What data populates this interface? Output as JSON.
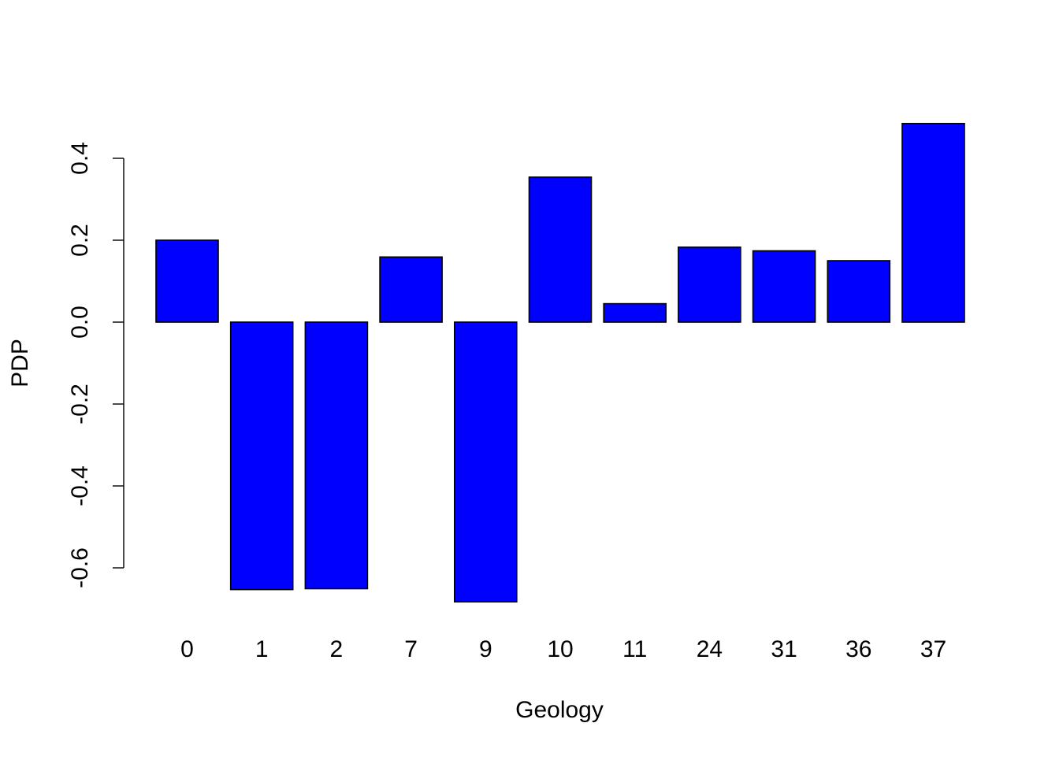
{
  "chart_data": {
    "type": "bar",
    "title": "",
    "xlabel": "Geology",
    "ylabel": "PDP",
    "categories": [
      "0",
      "1",
      "2",
      "7",
      "9",
      "10",
      "11",
      "24",
      "31",
      "36",
      "37"
    ],
    "values": [
      0.2,
      -0.653,
      -0.651,
      0.159,
      -0.683,
      0.354,
      0.045,
      0.183,
      0.174,
      0.15,
      0.485
    ],
    "ylim": [
      -0.6,
      0.4
    ],
    "yticks": [
      -0.6,
      -0.4,
      -0.2,
      0.0,
      0.2,
      0.4
    ],
    "ytick_labels": [
      "-0.6",
      "-0.4",
      "-0.2",
      "0.0",
      "0.2",
      "0.4"
    ],
    "grid": false,
    "legend": "none",
    "colors": {
      "bar_fill": "#0000ff",
      "bar_stroke": "#000000",
      "axis": "#000000"
    }
  }
}
